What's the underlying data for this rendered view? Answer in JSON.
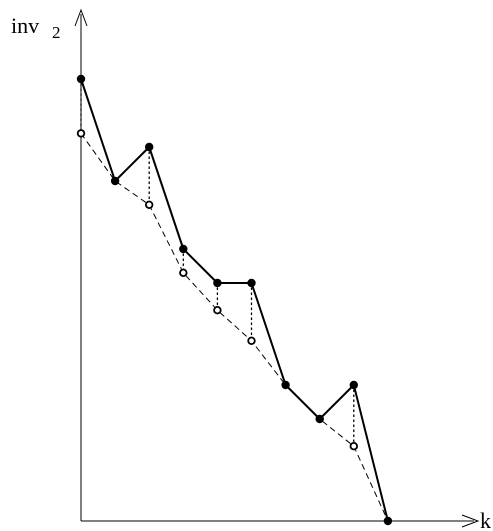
{
  "axes": {
    "y_label_main": "inv",
    "y_label_subscript": "2",
    "x_label": "k"
  },
  "chart_data": {
    "type": "line",
    "title": "",
    "xlabel": "k",
    "ylabel": "inv_2",
    "grid": false,
    "legend": "none",
    "xlim": [
      0,
      9.2
    ],
    "ylim": [
      0,
      13.5
    ],
    "series": [
      {
        "style": "solid-filled-markers",
        "color": "#000000",
        "x": [
          0,
          1,
          2,
          3,
          4,
          5,
          6,
          7,
          8,
          9
        ],
        "y": [
          13,
          10,
          11,
          8,
          7,
          7,
          4,
          3,
          4,
          0
        ]
      },
      {
        "style": "dashed-open-markers",
        "color": "#000000",
        "x": [
          0,
          1,
          2,
          3,
          4,
          5,
          6,
          7,
          8,
          9
        ],
        "y": [
          11.4,
          10,
          9.3,
          7.3,
          6.2,
          5.3,
          4,
          3,
          2.2,
          0
        ]
      }
    ],
    "connectors": {
      "style": "dotted-vertical",
      "x": [
        0,
        2,
        3,
        4,
        5,
        8
      ]
    }
  }
}
